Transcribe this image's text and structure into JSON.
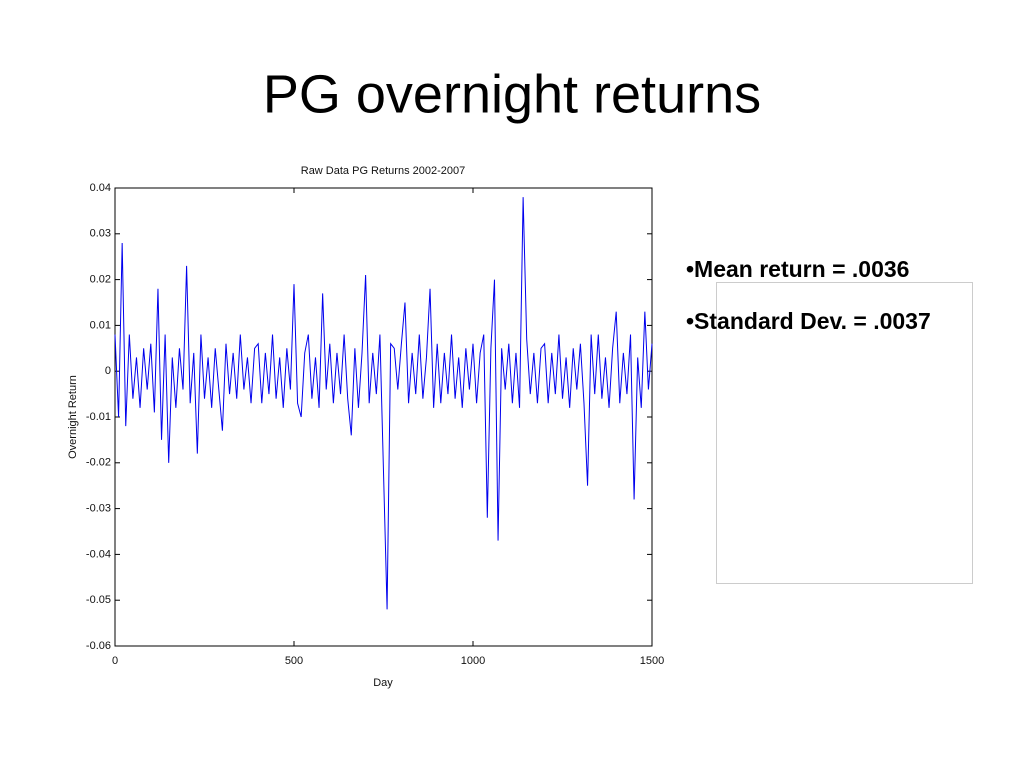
{
  "slide": {
    "title": "PG overnight returns",
    "bullets": [
      "•Mean return = .0036",
      "•Standard Dev. = .0037"
    ]
  },
  "chart_data": {
    "type": "line",
    "title": "Raw Data PG Returns 2002-2007",
    "xlabel": "Day",
    "ylabel": "Overnight Return",
    "color": "#0000ee",
    "x": [
      0,
      10,
      20,
      30,
      40,
      50,
      60,
      70,
      80,
      90,
      100,
      110,
      120,
      130,
      140,
      150,
      160,
      170,
      180,
      190,
      200,
      210,
      220,
      230,
      240,
      250,
      260,
      270,
      280,
      290,
      300,
      310,
      320,
      330,
      340,
      350,
      360,
      370,
      380,
      390,
      400,
      410,
      420,
      430,
      440,
      450,
      460,
      470,
      480,
      490,
      500,
      510,
      520,
      530,
      540,
      550,
      560,
      570,
      580,
      590,
      600,
      610,
      620,
      630,
      640,
      650,
      660,
      670,
      680,
      690,
      700,
      710,
      720,
      730,
      740,
      750,
      760,
      770,
      780,
      790,
      800,
      810,
      820,
      830,
      840,
      850,
      860,
      870,
      880,
      890,
      900,
      910,
      920,
      930,
      940,
      950,
      960,
      970,
      980,
      990,
      1000,
      1010,
      1020,
      1030,
      1040,
      1050,
      1060,
      1070,
      1080,
      1090,
      1100,
      1110,
      1120,
      1130,
      1140,
      1150,
      1160,
      1170,
      1180,
      1190,
      1200,
      1210,
      1220,
      1230,
      1240,
      1250,
      1260,
      1270,
      1280,
      1290,
      1300,
      1310,
      1320,
      1330,
      1340,
      1350,
      1360,
      1370,
      1380,
      1390,
      1400,
      1410,
      1420,
      1430,
      1440,
      1450,
      1460,
      1470,
      1480,
      1490,
      1500
    ],
    "values": [
      0.008,
      -0.01,
      0.028,
      -0.012,
      0.008,
      -0.006,
      0.003,
      -0.008,
      0.005,
      -0.004,
      0.006,
      -0.009,
      0.018,
      -0.015,
      0.008,
      -0.02,
      0.003,
      -0.008,
      0.005,
      -0.004,
      0.023,
      -0.007,
      0.004,
      -0.018,
      0.008,
      -0.006,
      0.003,
      -0.008,
      0.005,
      -0.004,
      -0.013,
      0.006,
      -0.005,
      0.004,
      -0.006,
      0.008,
      -0.004,
      0.003,
      -0.007,
      0.005,
      0.006,
      -0.007,
      0.004,
      -0.005,
      0.008,
      -0.006,
      0.003,
      -0.008,
      0.005,
      -0.004,
      0.019,
      -0.007,
      -0.01,
      0.004,
      0.008,
      -0.006,
      0.003,
      -0.008,
      0.017,
      -0.004,
      0.006,
      -0.007,
      0.004,
      -0.005,
      0.008,
      -0.006,
      -0.014,
      0.005,
      -0.008,
      0.004,
      0.021,
      -0.007,
      0.004,
      -0.005,
      0.008,
      -0.022,
      -0.052,
      0.006,
      0.005,
      -0.004,
      0.006,
      0.015,
      -0.007,
      0.004,
      -0.005,
      0.008,
      -0.006,
      0.003,
      0.018,
      -0.008,
      0.006,
      -0.007,
      0.004,
      -0.005,
      0.008,
      -0.006,
      0.003,
      -0.008,
      0.005,
      -0.004,
      0.006,
      -0.007,
      0.004,
      0.008,
      -0.032,
      0.005,
      0.02,
      -0.037,
      0.005,
      -0.004,
      0.006,
      -0.007,
      0.004,
      -0.008,
      0.038,
      0.007,
      -0.005,
      0.004,
      -0.007,
      0.005,
      0.006,
      -0.007,
      0.004,
      -0.005,
      0.008,
      -0.006,
      0.003,
      -0.008,
      0.005,
      -0.004,
      0.006,
      -0.007,
      -0.025,
      0.008,
      -0.005,
      0.008,
      -0.006,
      0.003,
      -0.008,
      0.005,
      0.013,
      -0.007,
      0.004,
      -0.005,
      0.008,
      -0.028,
      0.003,
      -0.008,
      0.013,
      -0.004,
      0.006
    ],
    "xlim": [
      0,
      1500
    ],
    "xticks": [
      0,
      500,
      1000,
      1500
    ],
    "ylim": [
      -0.06,
      0.04
    ],
    "yticks": [
      0.04,
      0.03,
      0.02,
      0.01,
      0,
      -0.01,
      -0.02,
      -0.03,
      -0.04,
      -0.05,
      -0.06
    ]
  }
}
